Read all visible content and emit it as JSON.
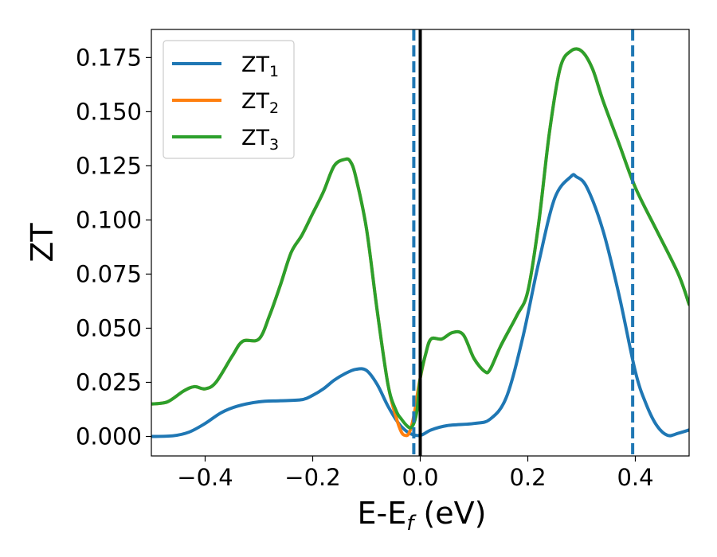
{
  "chart_data": {
    "type": "line",
    "xlabel": "E-E",
    "xlabel_sub": "f",
    "xlabel_unit": " (eV)",
    "ylabel": "ZT",
    "xlim": [
      -0.5,
      0.5
    ],
    "ylim": [
      -0.009,
      0.188
    ],
    "x_ticks": [
      -0.4,
      -0.2,
      0.0,
      0.2,
      0.4
    ],
    "x_tick_labels": [
      "−0.4",
      "−0.2",
      "0.0",
      "0.2",
      "0.4"
    ],
    "y_ticks": [
      0.0,
      0.025,
      0.05,
      0.075,
      0.1,
      0.125,
      0.15,
      0.175
    ],
    "y_tick_labels": [
      "0.000",
      "0.025",
      "0.050",
      "0.075",
      "0.100",
      "0.125",
      "0.150",
      "0.175"
    ],
    "grid": false,
    "legend_position": "upper-left",
    "vertical_lines": [
      {
        "x": -0.012,
        "style": "dashed",
        "color": "#1f77b4"
      },
      {
        "x": 0.0,
        "style": "solid",
        "color": "#000000"
      },
      {
        "x": 0.395,
        "style": "dashed",
        "color": "#1f77b4"
      }
    ],
    "series": [
      {
        "name": "ZT",
        "sub": "1",
        "color": "#1f77b4",
        "x": [
          -0.5,
          -0.46,
          -0.43,
          -0.4,
          -0.37,
          -0.34,
          -0.3,
          -0.26,
          -0.22,
          -0.2,
          -0.18,
          -0.16,
          -0.14,
          -0.12,
          -0.1,
          -0.08,
          -0.06,
          -0.04,
          -0.02,
          0.0,
          0.02,
          0.05,
          0.1,
          0.13,
          0.16,
          0.19,
          0.22,
          0.25,
          0.28,
          0.29,
          0.31,
          0.34,
          0.37,
          0.4,
          0.42,
          0.44,
          0.46,
          0.48,
          0.5
        ],
        "y": [
          0.0,
          0.0003,
          0.002,
          0.006,
          0.011,
          0.014,
          0.016,
          0.0165,
          0.017,
          0.019,
          0.022,
          0.026,
          0.029,
          0.031,
          0.0305,
          0.024,
          0.014,
          0.006,
          0.0015,
          0.0005,
          0.003,
          0.005,
          0.006,
          0.008,
          0.018,
          0.045,
          0.08,
          0.11,
          0.12,
          0.12,
          0.115,
          0.095,
          0.065,
          0.03,
          0.015,
          0.005,
          0.0005,
          0.0015,
          0.003
        ]
      },
      {
        "name": "ZT",
        "sub": "2",
        "color": "#ff7f0e",
        "x": [
          -0.5,
          -0.47,
          -0.44,
          -0.42,
          -0.4,
          -0.38,
          -0.35,
          -0.33,
          -0.3,
          -0.28,
          -0.26,
          -0.24,
          -0.22,
          -0.2,
          -0.18,
          -0.16,
          -0.14,
          -0.13,
          -0.12,
          -0.1,
          -0.08,
          -0.06,
          -0.045,
          -0.035,
          -0.028,
          -0.022,
          -0.016,
          -0.01,
          -0.005,
          0.0,
          0.01,
          0.02,
          0.04,
          0.06,
          0.08,
          0.1,
          0.12,
          0.13,
          0.15,
          0.18,
          0.2,
          0.22,
          0.24,
          0.26,
          0.28,
          0.3,
          0.32,
          0.34,
          0.37,
          0.4,
          0.44,
          0.48,
          0.5
        ],
        "y": [
          0.015,
          0.016,
          0.021,
          0.023,
          0.022,
          0.025,
          0.037,
          0.044,
          0.045,
          0.056,
          0.07,
          0.085,
          0.093,
          0.103,
          0.113,
          0.125,
          0.128,
          0.127,
          0.12,
          0.096,
          0.058,
          0.024,
          0.009,
          0.002,
          0.0005,
          0.001,
          0.005,
          0.012,
          0.02,
          0.027,
          0.038,
          0.045,
          0.045,
          0.048,
          0.047,
          0.036,
          0.03,
          0.031,
          0.042,
          0.056,
          0.067,
          0.098,
          0.14,
          0.17,
          0.178,
          0.178,
          0.17,
          0.155,
          0.135,
          0.115,
          0.095,
          0.075,
          0.061
        ]
      },
      {
        "name": "ZT",
        "sub": "3",
        "color": "#2ca02c",
        "x": [
          -0.5,
          -0.47,
          -0.44,
          -0.42,
          -0.4,
          -0.38,
          -0.35,
          -0.33,
          -0.3,
          -0.28,
          -0.26,
          -0.24,
          -0.22,
          -0.2,
          -0.18,
          -0.16,
          -0.14,
          -0.13,
          -0.12,
          -0.1,
          -0.08,
          -0.06,
          -0.045,
          -0.035,
          -0.025,
          -0.018,
          -0.012,
          -0.006,
          0.0,
          0.01,
          0.02,
          0.04,
          0.06,
          0.08,
          0.1,
          0.12,
          0.13,
          0.15,
          0.18,
          0.2,
          0.22,
          0.24,
          0.26,
          0.28,
          0.3,
          0.32,
          0.34,
          0.37,
          0.4,
          0.44,
          0.48,
          0.5
        ],
        "y": [
          0.015,
          0.016,
          0.021,
          0.023,
          0.022,
          0.025,
          0.037,
          0.044,
          0.045,
          0.056,
          0.07,
          0.085,
          0.093,
          0.103,
          0.113,
          0.125,
          0.128,
          0.127,
          0.12,
          0.096,
          0.058,
          0.024,
          0.012,
          0.008,
          0.005,
          0.004,
          0.006,
          0.012,
          0.027,
          0.038,
          0.045,
          0.045,
          0.048,
          0.047,
          0.036,
          0.03,
          0.031,
          0.042,
          0.056,
          0.067,
          0.098,
          0.14,
          0.17,
          0.178,
          0.178,
          0.17,
          0.155,
          0.135,
          0.115,
          0.095,
          0.075,
          0.061
        ]
      }
    ]
  }
}
